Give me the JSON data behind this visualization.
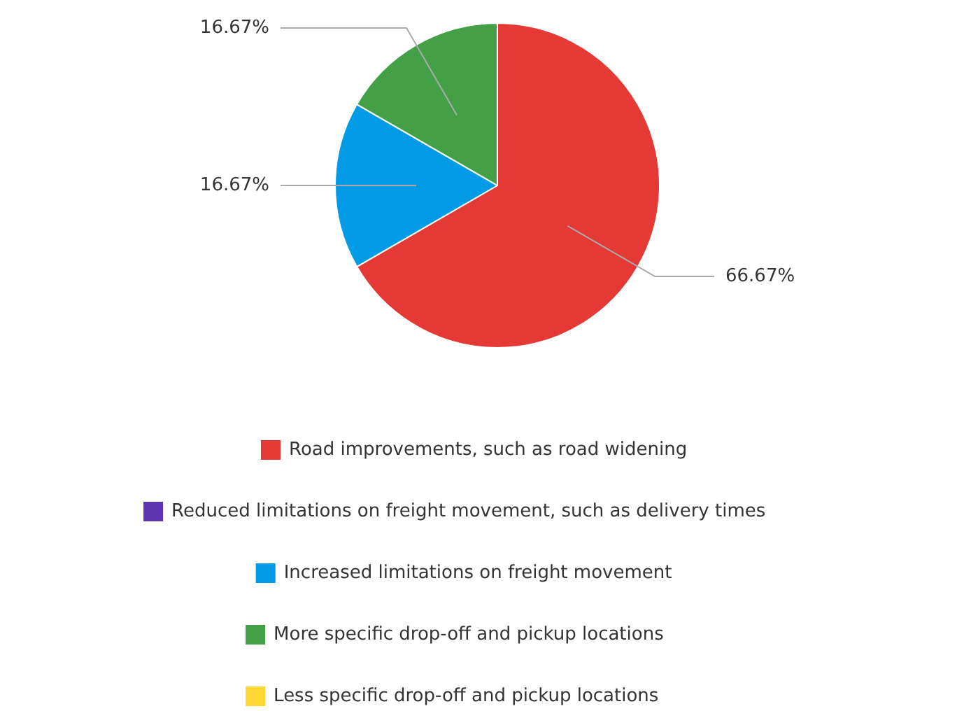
{
  "chart_data": {
    "type": "pie",
    "categories": [
      "Road improvements, such as road widening",
      "Reduced limitations on freight movement, such as delivery times",
      "Increased limitations on freight movement",
      "More specific drop-off and pickup locations",
      "Less specific drop-off and pickup locations"
    ],
    "values": [
      66.67,
      0,
      16.67,
      16.67,
      0
    ],
    "colors": [
      "#e53935",
      "#5e35b1",
      "#039be5",
      "#43a047",
      "#fdd835"
    ],
    "value_labels": [
      "66.67%",
      null,
      "16.67%",
      "16.67%",
      null
    ],
    "legend": "bottom"
  }
}
